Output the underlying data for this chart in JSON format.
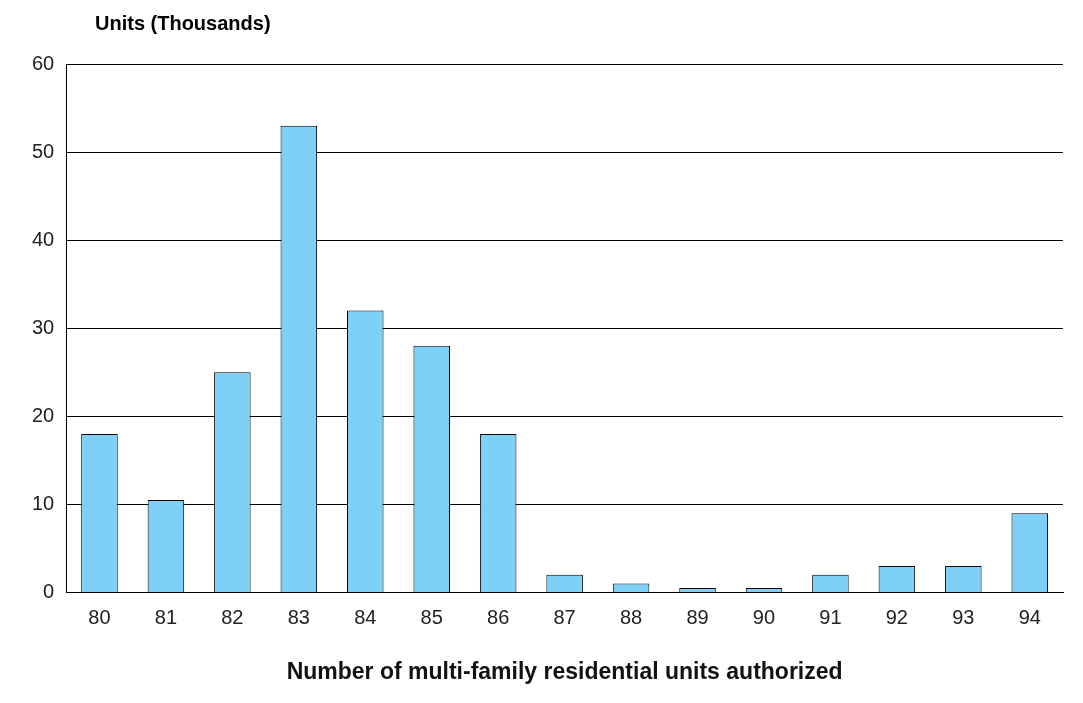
{
  "chart_data": {
    "type": "bar",
    "ylabel": "Units (Thousands)",
    "xlabel": "Number of multi-family residential units authorized",
    "categories": [
      "80",
      "81",
      "82",
      "83",
      "84",
      "85",
      "86",
      "87",
      "88",
      "89",
      "90",
      "91",
      "92",
      "93",
      "94"
    ],
    "values": [
      18,
      10.5,
      25,
      53,
      32,
      28,
      18,
      2,
      1,
      0.5,
      0.5,
      2,
      3,
      3,
      9
    ],
    "color": "#7fd0f7",
    "ylim": [
      0,
      60
    ],
    "yticks": [
      0,
      10,
      20,
      30,
      40,
      50,
      60
    ],
    "grid": "y",
    "legend": false
  }
}
